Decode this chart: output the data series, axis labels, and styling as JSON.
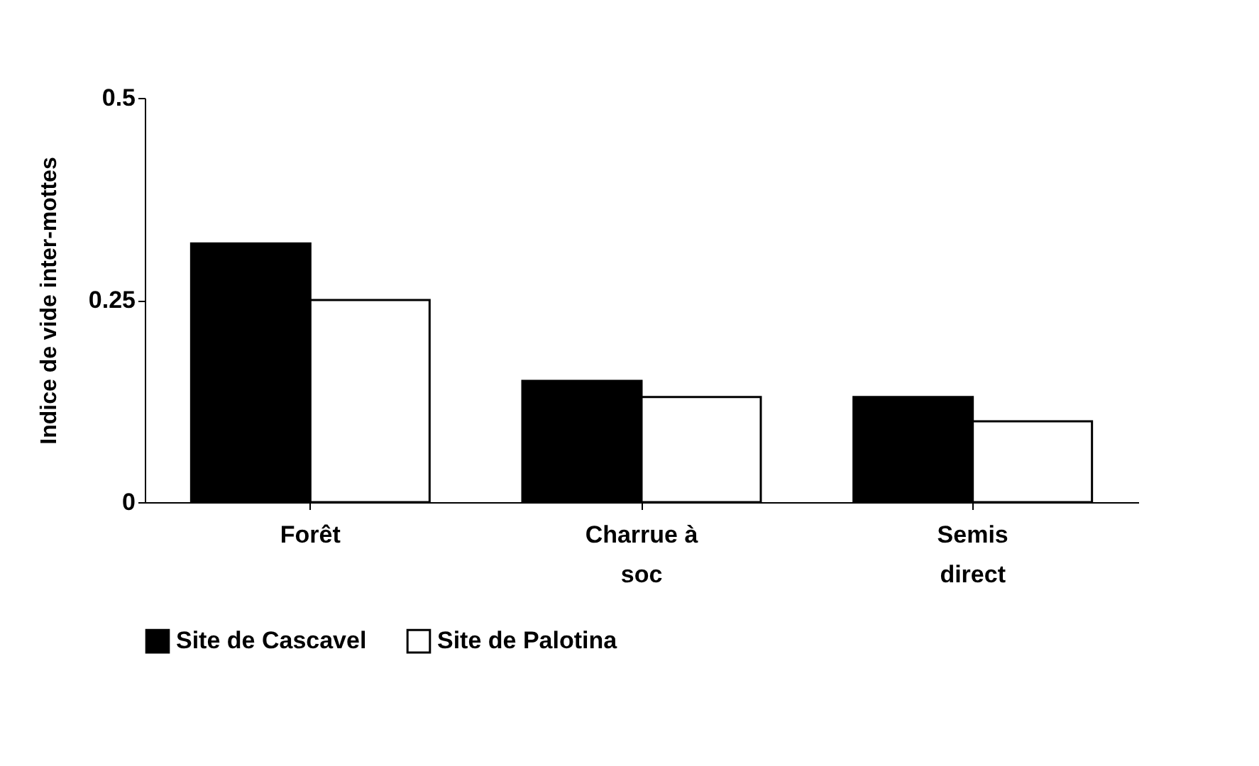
{
  "chart_data": {
    "type": "bar",
    "ylabel": "Indice de vide inter-mottes",
    "categories": [
      "Forêt",
      "Charrue à soc",
      "Semis direct"
    ],
    "series": [
      {
        "name": "Site de Cascavel",
        "color": "#000000",
        "values": [
          0.32,
          0.15,
          0.13
        ]
      },
      {
        "name": "Site de Palotina",
        "color": "#ffffff",
        "values": [
          0.25,
          0.13,
          0.1
        ]
      }
    ],
    "ylim": [
      0,
      0.5
    ],
    "yticks": [
      0,
      0.25,
      0.5
    ],
    "grid": false,
    "legend": "bottom"
  }
}
